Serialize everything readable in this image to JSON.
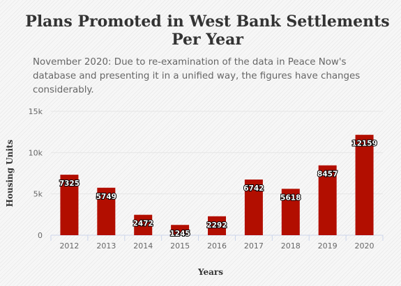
{
  "title": "Plans Promoted in West Bank Settlements Per Year",
  "subtitle": "November 2020: Due to re-examination of the data in Peace Now's database and presenting it in a unified way, the figures have changes considerably.",
  "chart_data": {
    "type": "bar",
    "categories": [
      "2012",
      "2013",
      "2014",
      "2015",
      "2016",
      "2017",
      "2018",
      "2019",
      "2020"
    ],
    "values": [
      7325,
      5749,
      2472,
      1245,
      2292,
      6742,
      5618,
      8457,
      12159
    ],
    "xlabel": "Years",
    "ylabel": "Housing Units",
    "ylim": [
      0,
      15000
    ],
    "yticks": [
      0,
      5000,
      10000,
      15000
    ],
    "ytick_labels": [
      "0",
      "5k",
      "10k",
      "15k"
    ],
    "grid": true,
    "legend": "none",
    "data_labels": true,
    "bar_color": "#b20e00"
  }
}
